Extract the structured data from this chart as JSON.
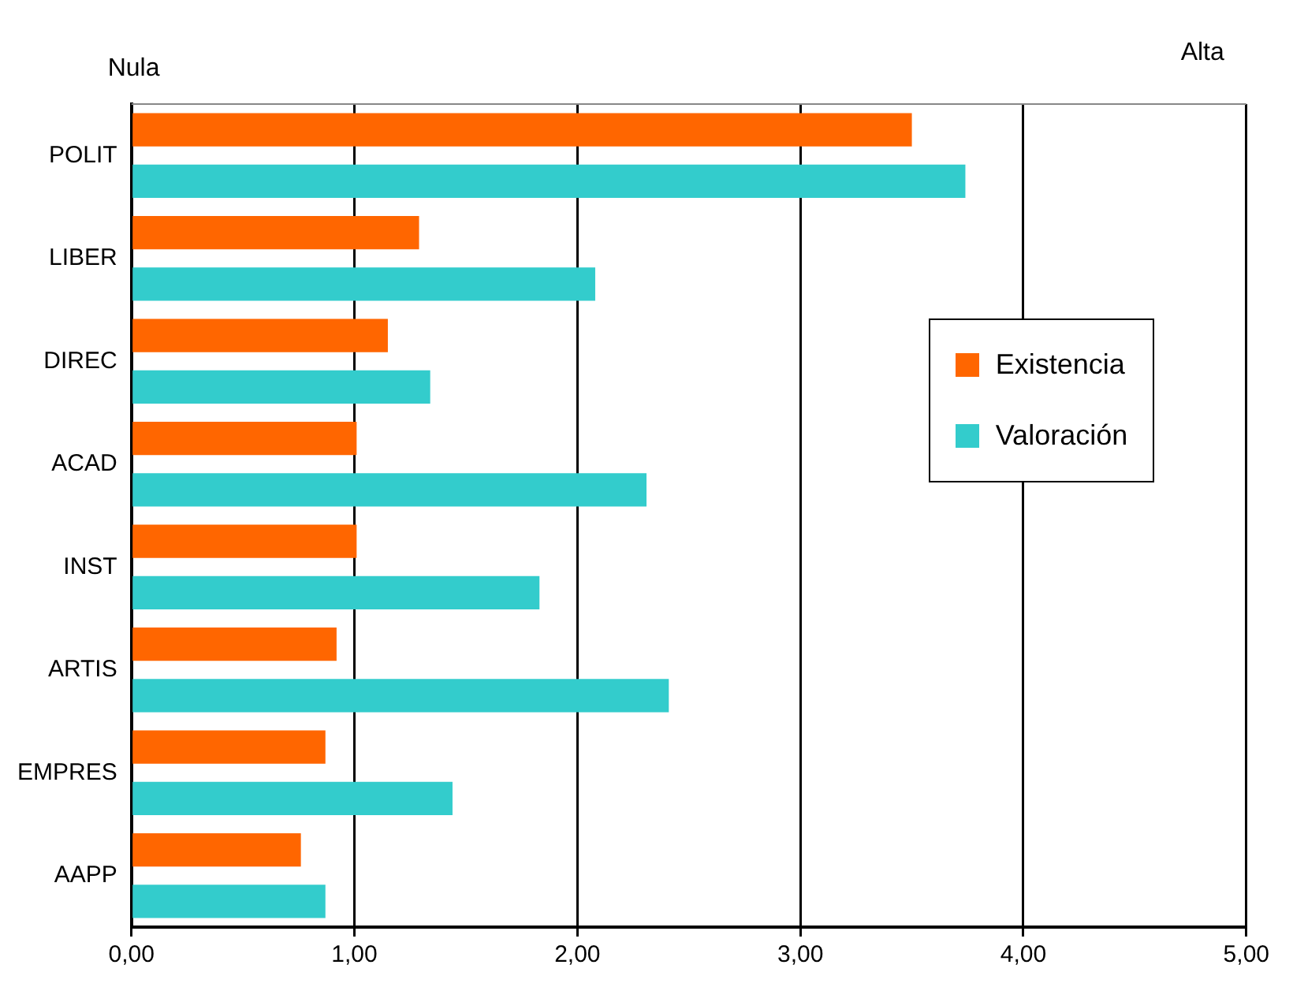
{
  "chart_data": {
    "type": "bar",
    "orientation": "horizontal",
    "categories": [
      "POLIT",
      "LIBER",
      "DIREC",
      "ACAD",
      "INST",
      "ARTIS",
      "EMPRES",
      "AAPP"
    ],
    "series": [
      {
        "name": "Existencia",
        "color": "#ff6600",
        "values": [
          3.5,
          1.29,
          1.15,
          1.01,
          1.01,
          0.92,
          0.87,
          0.76
        ]
      },
      {
        "name": "Valoración",
        "color": "#33cccc",
        "values": [
          3.74,
          2.08,
          1.34,
          2.31,
          1.83,
          2.41,
          1.44,
          0.87
        ]
      }
    ],
    "xlim": [
      0,
      5
    ],
    "xticks": [
      {
        "value": 0,
        "label": "0,00"
      },
      {
        "value": 1,
        "label": "1,00"
      },
      {
        "value": 2,
        "label": "2,00"
      },
      {
        "value": 3,
        "label": "3,00"
      },
      {
        "value": 4,
        "label": "4,00"
      },
      {
        "value": 5,
        "label": "5,00"
      }
    ],
    "annotations": [
      "Nula",
      "Alta"
    ],
    "grid": "x",
    "legend": "right"
  }
}
